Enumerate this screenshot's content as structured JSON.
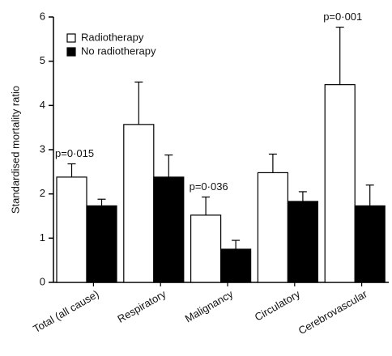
{
  "chart_data": {
    "type": "bar",
    "y_label": "Standardised mortality ratio",
    "categories": [
      "Total (all cause)",
      "Respiratory",
      "Malignancy",
      "Circulatory",
      "Cerebrovascular"
    ],
    "series": [
      {
        "name": "Radiotherapy",
        "color": "#ffffff",
        "values": [
          2.38,
          3.57,
          1.52,
          2.48,
          4.47
        ],
        "errors": [
          0.3,
          0.96,
          0.41,
          0.42,
          1.3
        ]
      },
      {
        "name": "No radiotherapy",
        "color": "#000000",
        "values": [
          1.73,
          2.38,
          0.75,
          1.83,
          1.73
        ],
        "errors": [
          0.15,
          0.5,
          0.2,
          0.22,
          0.47
        ]
      }
    ],
    "annotations": [
      {
        "text": "p=0·015",
        "category": "Total (all cause)"
      },
      {
        "text": "p=0·036",
        "category": "Malignancy"
      },
      {
        "text": "p=0·001",
        "category": "Cerebrovascular"
      }
    ],
    "ylim": [
      0,
      6
    ],
    "yticks": [
      0,
      1,
      2,
      3,
      4,
      5,
      6
    ],
    "legend": "upper-left"
  }
}
